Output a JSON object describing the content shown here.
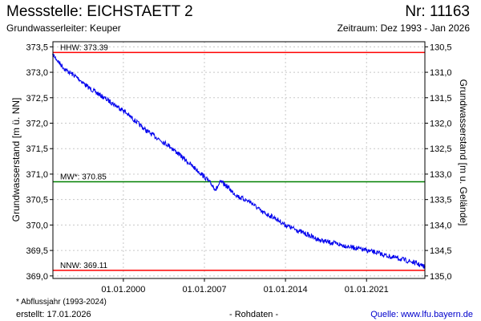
{
  "header": {
    "title": "Messstelle: EICHSTAETT 2",
    "number": "Nr: 11163",
    "aquifer": "Grundwasserleiter: Keuper",
    "period": "Zeitraum: Dez 1993 - Jan 2026"
  },
  "footer": {
    "footnote": "* Abflussjahr (1993-2024)",
    "created": "erstellt:  17.01.2026",
    "raw": "- Rohdaten -",
    "source": "Quelle:  www.lfu.bayern.de"
  },
  "colors": {
    "series": "#0000ee",
    "high_line": "#ff0000",
    "low_line": "#ff0000",
    "mean_line": "#008000",
    "grid": "#c8c8c8"
  },
  "chart_data": {
    "type": "line",
    "ylabel": "Grundwasserstand [m ü. NN]",
    "ylabel_right": "Grundwasserstand [m u. Gelände]",
    "ylim": [
      368.95,
      373.6
    ],
    "xlim": [
      "1993-12-01",
      "2026-01-15"
    ],
    "grid": true,
    "y_ticks": [
      "369,0",
      "369,5",
      "370,0",
      "370,5",
      "371,0",
      "371,5",
      "372,0",
      "372,5",
      "373,0",
      "373,5"
    ],
    "x_ticks": [
      {
        "date": "2000-01-01",
        "label": "01.01.2000"
      },
      {
        "date": "2007-01-01",
        "label": "01.01.2007"
      },
      {
        "date": "2014-01-01",
        "label": "01.01.2014"
      },
      {
        "date": "2021-01-01",
        "label": "01.01.2021"
      }
    ],
    "y2_ticks": [
      "130,5",
      "131,0",
      "131,5",
      "132,0",
      "132,5",
      "133,0",
      "133,5",
      "134,0",
      "134,5",
      "135,0"
    ],
    "y2_reference": {
      "level": 373.5,
      "depth": 130.5
    },
    "reference_lines": [
      {
        "label": "HHW: 373.39",
        "value": 373.39,
        "kind": "high"
      },
      {
        "label": "MW*: 370.85",
        "value": 370.85,
        "kind": "mean"
      },
      {
        "label": "NNW: 369.11",
        "value": 369.11,
        "kind": "low"
      }
    ],
    "series": [
      {
        "x": [
          "1993-12-01",
          "1994-06-01",
          "1995-01-01",
          "1996-01-01",
          "1997-01-01",
          "1998-01-01",
          "1999-01-01",
          "2000-01-01",
          "2001-01-01",
          "2002-01-01",
          "2003-01-01",
          "2004-01-01",
          "2005-01-01",
          "2006-01-01",
          "2007-01-01",
          "2008-01-01",
          "2008-06-01",
          "2009-01-01",
          "2009-06-01",
          "2010-01-01",
          "2011-01-01",
          "2012-01-01",
          "2013-01-01",
          "2014-01-01",
          "2015-01-01",
          "2016-01-01",
          "2017-01-01",
          "2018-01-01",
          "2019-01-01",
          "2020-01-01",
          "2021-01-01",
          "2022-01-01",
          "2023-01-01",
          "2024-01-01",
          "2025-01-01",
          "2026-01-10"
        ],
        "values": [
          373.35,
          373.2,
          373.05,
          372.9,
          372.7,
          372.55,
          372.4,
          372.25,
          372.05,
          371.85,
          371.7,
          371.55,
          371.35,
          371.15,
          370.95,
          370.7,
          370.85,
          370.75,
          370.65,
          370.55,
          370.45,
          370.25,
          370.15,
          370.0,
          369.9,
          369.8,
          369.7,
          369.65,
          369.6,
          369.55,
          369.5,
          369.45,
          369.38,
          369.33,
          369.27,
          369.18
        ]
      }
    ]
  }
}
